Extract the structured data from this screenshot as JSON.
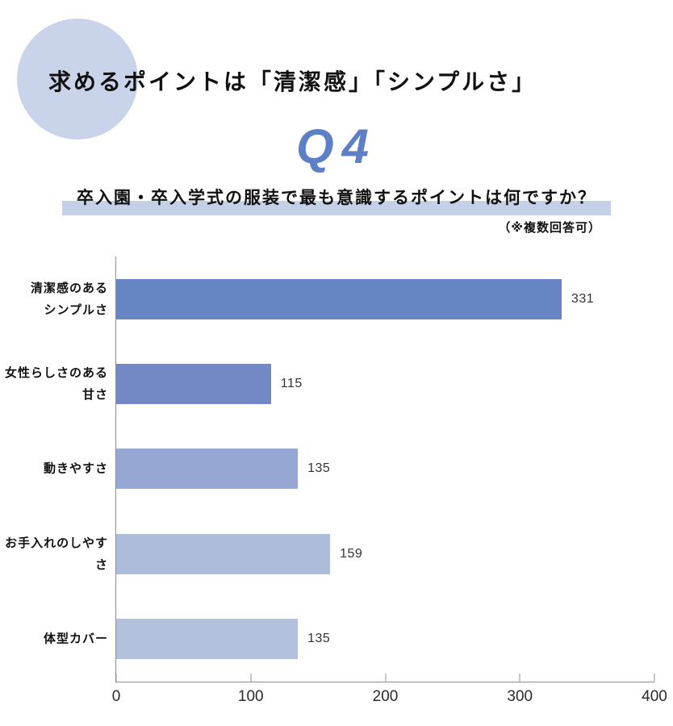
{
  "page": {
    "background": "#ffffff"
  },
  "header": {
    "title": "求めるポイントは「清潔感」「シンプルさ」",
    "question_number": "Q4",
    "question_number_color": "#5c7fc6",
    "question_text": "卒入園・卒入学式の服装で最も意識するポイントは何ですか？",
    "note": "（※複数回答可）",
    "accent_circle_color": "#c9d4ea",
    "highlight_color": "#c3d0e6"
  },
  "chart_data": {
    "type": "bar",
    "orientation": "horizontal",
    "title": "",
    "xlabel": "",
    "ylabel": "",
    "categories": [
      "清潔感のある\nシンプルさ",
      "女性らしさのある\n甘さ",
      "動きやすさ",
      "お手入れのしやすさ",
      "体型カバー"
    ],
    "values": [
      331,
      115,
      135,
      159,
      135
    ],
    "bar_colors": [
      "#6785c3",
      "#7289c6",
      "#95a7d2",
      "#aebcdb",
      "#b3c1dc"
    ],
    "xlim": [
      0,
      400
    ],
    "x_ticks": [
      0,
      100,
      200,
      300,
      400
    ],
    "grid": false,
    "legend": false,
    "value_labels": true,
    "axis_color": "#8c8c8c"
  }
}
